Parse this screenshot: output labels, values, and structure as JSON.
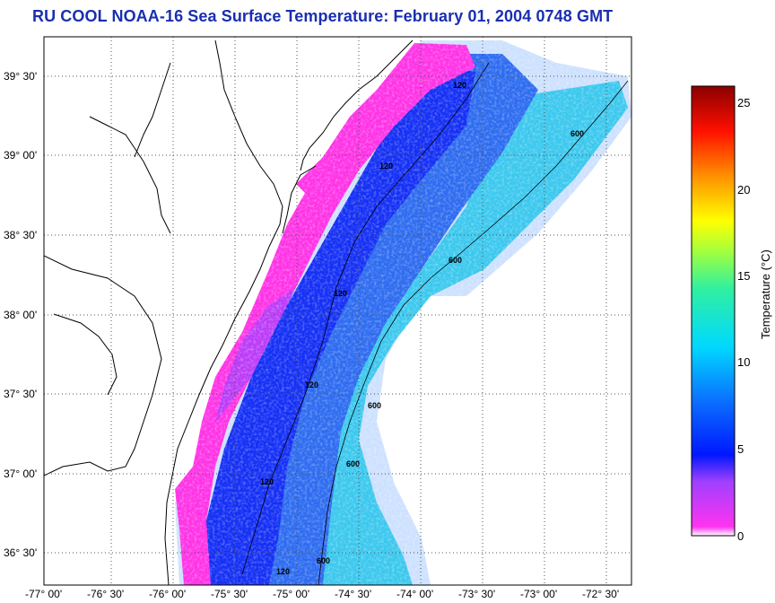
{
  "title": "RU COOL  NOAA-16  Sea Surface Temperature:  February 01, 2004 0748 GMT",
  "map": {
    "lat_labels": [
      "39° 30'",
      "39° 00'",
      "38° 30'",
      "38° 00'",
      "37° 30'",
      "37° 00'",
      "36° 30'"
    ],
    "lon_labels": [
      "-77° 00'",
      "-76° 30'",
      "-76° 00'",
      "-75° 30'",
      "-75° 00'",
      "-74° 30'",
      "-74° 00'",
      "-73° 30'",
      "-73° 00'",
      "-72° 30'"
    ],
    "contour_labels": [
      "120",
      "120",
      "600",
      "600",
      "120",
      "600",
      "120",
      "600",
      "120",
      "600",
      "120"
    ]
  },
  "colorbar": {
    "label": "Temperature (°C)",
    "ticks": [
      "25",
      "20",
      "15",
      "10",
      "5",
      "0"
    ],
    "min": 0,
    "max": 26
  },
  "colors": {
    "title": "#1a2fb0",
    "cold": "#ff2fe0",
    "deep": "#1528ff",
    "mid": "#2a9cff",
    "warm": "#3fe6e6"
  }
}
